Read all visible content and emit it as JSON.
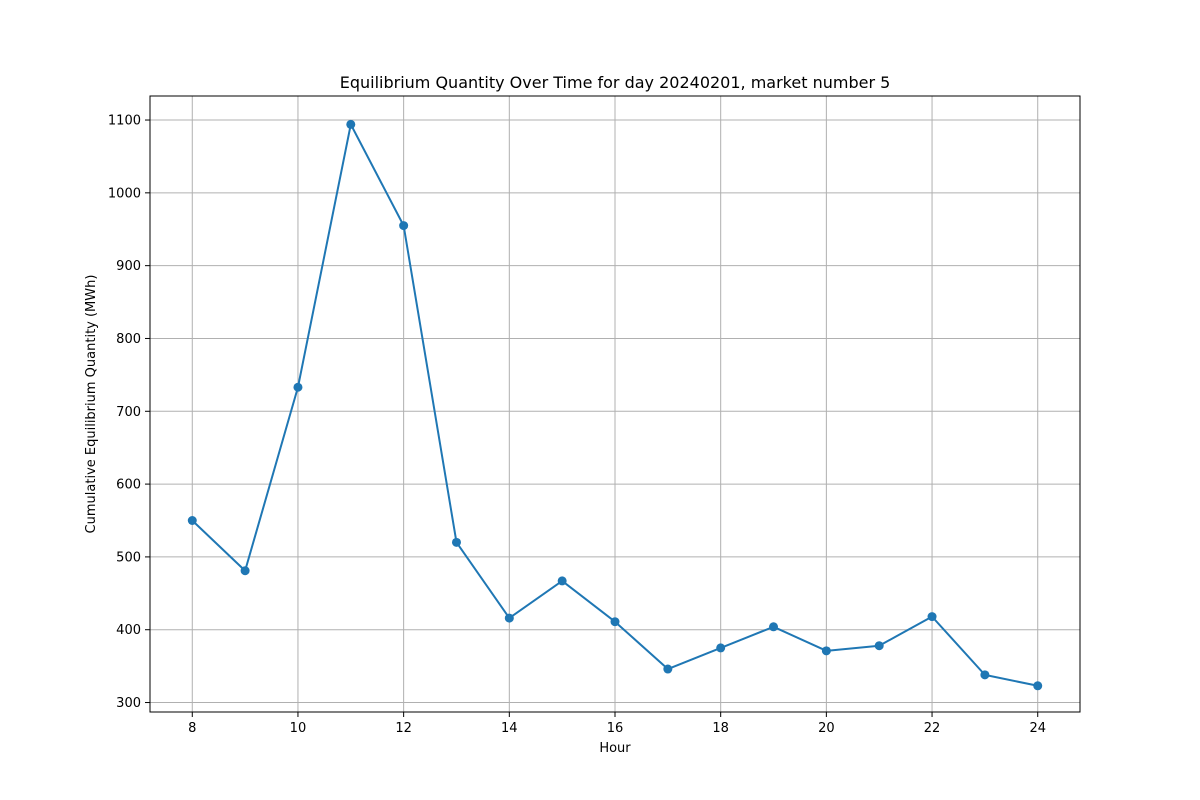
{
  "chart_data": {
    "type": "line",
    "title": "Equilibrium Quantity Over Time for day 20240201, market number 5",
    "xlabel": "Hour",
    "ylabel": "Cumulative Equilibrium Quantity (MWh)",
    "xlim": [
      7.2,
      24.8
    ],
    "ylim": [
      287,
      1133
    ],
    "xticks": [
      8,
      10,
      12,
      14,
      16,
      18,
      20,
      22,
      24
    ],
    "yticks": [
      300,
      400,
      500,
      600,
      700,
      800,
      900,
      1000,
      1100
    ],
    "grid": true,
    "legend": "none",
    "series": [
      {
        "color": "#1f77b4",
        "marker": "circle",
        "x": [
          8,
          9,
          10,
          11,
          12,
          13,
          14,
          15,
          16,
          17,
          18,
          19,
          20,
          21,
          22,
          23,
          24
        ],
        "y": [
          550,
          481,
          733,
          1094,
          955,
          520,
          416,
          467,
          411,
          346,
          375,
          404,
          371,
          378,
          418,
          338,
          323
        ]
      }
    ]
  }
}
